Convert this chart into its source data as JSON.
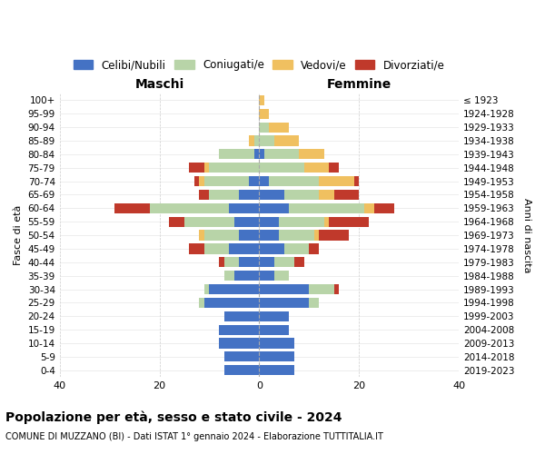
{
  "age_groups": [
    "0-4",
    "5-9",
    "10-14",
    "15-19",
    "20-24",
    "25-29",
    "30-34",
    "35-39",
    "40-44",
    "45-49",
    "50-54",
    "55-59",
    "60-64",
    "65-69",
    "70-74",
    "75-79",
    "80-84",
    "85-89",
    "90-94",
    "95-99",
    "100+"
  ],
  "birth_years": [
    "2019-2023",
    "2014-2018",
    "2009-2013",
    "2004-2008",
    "1999-2003",
    "1994-1998",
    "1989-1993",
    "1984-1988",
    "1979-1983",
    "1974-1978",
    "1969-1973",
    "1964-1968",
    "1959-1963",
    "1954-1958",
    "1949-1953",
    "1944-1948",
    "1939-1943",
    "1934-1938",
    "1929-1933",
    "1924-1928",
    "≤ 1923"
  ],
  "males": {
    "celibi": [
      7,
      7,
      8,
      8,
      7,
      11,
      10,
      5,
      4,
      6,
      4,
      5,
      6,
      4,
      2,
      0,
      1,
      0,
      0,
      0,
      0
    ],
    "coniugati": [
      0,
      0,
      0,
      0,
      0,
      1,
      1,
      2,
      3,
      5,
      7,
      10,
      16,
      6,
      9,
      10,
      7,
      1,
      0,
      0,
      0
    ],
    "vedovi": [
      0,
      0,
      0,
      0,
      0,
      0,
      0,
      0,
      0,
      0,
      1,
      0,
      0,
      0,
      1,
      1,
      0,
      1,
      0,
      0,
      0
    ],
    "divorziati": [
      0,
      0,
      0,
      0,
      0,
      0,
      0,
      0,
      1,
      3,
      0,
      3,
      7,
      2,
      1,
      3,
      0,
      0,
      0,
      0,
      0
    ]
  },
  "females": {
    "nubili": [
      7,
      7,
      7,
      6,
      6,
      10,
      10,
      3,
      3,
      5,
      4,
      4,
      6,
      5,
      2,
      0,
      1,
      0,
      0,
      0,
      0
    ],
    "coniugate": [
      0,
      0,
      0,
      0,
      0,
      2,
      5,
      3,
      4,
      5,
      7,
      9,
      15,
      7,
      10,
      9,
      7,
      3,
      2,
      0,
      0
    ],
    "vedove": [
      0,
      0,
      0,
      0,
      0,
      0,
      0,
      0,
      0,
      0,
      1,
      1,
      2,
      3,
      7,
      5,
      5,
      5,
      4,
      2,
      1
    ],
    "divorziate": [
      0,
      0,
      0,
      0,
      0,
      0,
      1,
      0,
      2,
      2,
      6,
      8,
      4,
      5,
      1,
      2,
      0,
      0,
      0,
      0,
      0
    ]
  },
  "colors": {
    "celibi": "#4472C4",
    "coniugati": "#b8d4a8",
    "vedovi": "#f0c060",
    "divorziati": "#c0392b"
  },
  "title": "Popolazione per età, sesso e stato civile - 2024",
  "subtitle": "COMUNE DI MUZZANO (BI) - Dati ISTAT 1° gennaio 2024 - Elaborazione TUTTITALIA.IT",
  "xlabel_left": "Maschi",
  "xlabel_right": "Femmine",
  "ylabel_left": "Fasce di età",
  "ylabel_right": "Anni di nascita",
  "xlim": 40,
  "legend_labels": [
    "Celibi/Nubili",
    "Coniugati/e",
    "Vedovi/e",
    "Divorziati/e"
  ],
  "bg_color": "#ffffff",
  "grid_color": "#cccccc"
}
